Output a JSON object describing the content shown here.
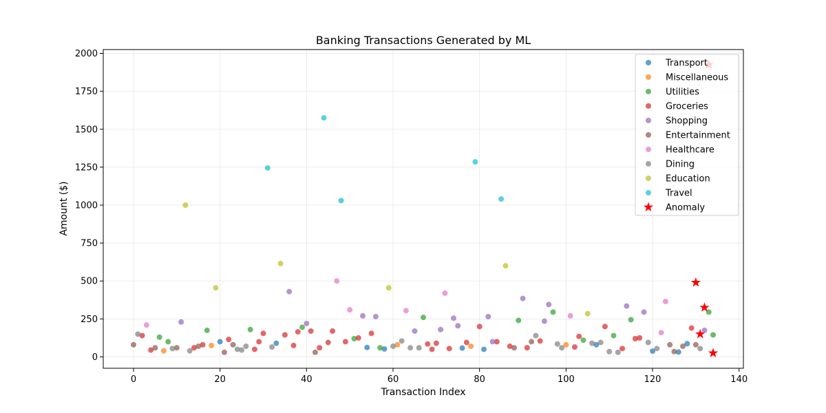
{
  "chart_data": {
    "type": "scatter",
    "title": "Banking Transactions Generated by ML",
    "xlabel": "Transaction Index",
    "ylabel": "Amount ($)",
    "xlim": [
      -7,
      141
    ],
    "ylim": [
      -75,
      2025
    ],
    "x_ticks": [
      0,
      20,
      40,
      60,
      80,
      100,
      120,
      140
    ],
    "y_ticks": [
      0,
      250,
      500,
      750,
      1000,
      1250,
      1500,
      1750,
      2000
    ],
    "grid": true,
    "legend_position": "top-right",
    "series": [
      {
        "name": "Transport",
        "color": "#1f77b4",
        "marker": "circle",
        "points": [
          [
            20,
            100
          ],
          [
            33,
            90
          ],
          [
            54,
            62
          ],
          [
            58,
            52
          ],
          [
            76,
            58
          ],
          [
            81,
            50
          ],
          [
            107,
            80
          ],
          [
            120,
            38
          ],
          [
            126,
            32
          ],
          [
            128,
            87
          ]
        ]
      },
      {
        "name": "Miscellaneous",
        "color": "#ff7f0e",
        "marker": "circle",
        "points": [
          [
            7,
            40
          ],
          [
            18,
            75
          ],
          [
            61,
            80
          ],
          [
            78,
            70
          ],
          [
            100,
            80
          ]
        ]
      },
      {
        "name": "Utilities",
        "color": "#2ca02c",
        "marker": "circle",
        "points": [
          [
            6,
            130
          ],
          [
            8,
            100
          ],
          [
            17,
            175
          ],
          [
            27,
            180
          ],
          [
            39,
            195
          ],
          [
            51,
            120
          ],
          [
            57,
            60
          ],
          [
            67,
            260
          ],
          [
            89,
            240
          ],
          [
            97,
            295
          ],
          [
            104,
            110
          ],
          [
            111,
            140
          ],
          [
            115,
            245
          ],
          [
            133,
            295
          ],
          [
            134,
            145
          ]
        ]
      },
      {
        "name": "Groceries",
        "color": "#d62728",
        "marker": "circle",
        "points": [
          [
            2,
            140
          ],
          [
            4,
            45
          ],
          [
            14,
            60
          ],
          [
            16,
            80
          ],
          [
            22,
            115
          ],
          [
            28,
            50
          ],
          [
            29,
            100
          ],
          [
            30,
            155
          ],
          [
            35,
            145
          ],
          [
            37,
            75
          ],
          [
            38,
            165
          ],
          [
            41,
            170
          ],
          [
            43,
            60
          ],
          [
            45,
            95
          ],
          [
            46,
            170
          ],
          [
            49,
            100
          ],
          [
            52,
            125
          ],
          [
            55,
            155
          ],
          [
            68,
            85
          ],
          [
            69,
            50
          ],
          [
            70,
            90
          ],
          [
            73,
            55
          ],
          [
            77,
            95
          ],
          [
            80,
            200
          ],
          [
            84,
            100
          ],
          [
            87,
            70
          ],
          [
            91,
            60
          ],
          [
            94,
            105
          ],
          [
            102,
            65
          ],
          [
            103,
            135
          ],
          [
            109,
            200
          ],
          [
            113,
            55
          ],
          [
            116,
            120
          ],
          [
            117,
            125
          ],
          [
            129,
            190
          ]
        ]
      },
      {
        "name": "Shopping",
        "color": "#9467bd",
        "marker": "circle",
        "points": [
          [
            11,
            230
          ],
          [
            36,
            430
          ],
          [
            40,
            220
          ],
          [
            53,
            270
          ],
          [
            56,
            265
          ],
          [
            65,
            170
          ],
          [
            71,
            180
          ],
          [
            74,
            255
          ],
          [
            75,
            205
          ],
          [
            82,
            265
          ],
          [
            83,
            100
          ],
          [
            90,
            385
          ],
          [
            95,
            235
          ],
          [
            96,
            345
          ],
          [
            114,
            335
          ],
          [
            118,
            295
          ],
          [
            132,
            175
          ]
        ]
      },
      {
        "name": "Entertainment",
        "color": "#8c564b",
        "marker": "circle",
        "points": [
          [
            0,
            80
          ],
          [
            5,
            60
          ],
          [
            10,
            60
          ],
          [
            15,
            70
          ],
          [
            21,
            30
          ],
          [
            23,
            80
          ],
          [
            42,
            30
          ],
          [
            88,
            60
          ],
          [
            92,
            100
          ],
          [
            124,
            80
          ],
          [
            125,
            35
          ],
          [
            127,
            70
          ],
          [
            130,
            80
          ]
        ]
      },
      {
        "name": "Healthcare",
        "color": "#e377c2",
        "marker": "circle",
        "points": [
          [
            3,
            210
          ],
          [
            47,
            500
          ],
          [
            50,
            310
          ],
          [
            63,
            305
          ],
          [
            72,
            420
          ],
          [
            101,
            270
          ],
          [
            122,
            160
          ],
          [
            123,
            365
          ]
        ]
      },
      {
        "name": "Dining",
        "color": "#7f7f7f",
        "marker": "circle",
        "points": [
          [
            1,
            150
          ],
          [
            9,
            55
          ],
          [
            13,
            40
          ],
          [
            24,
            50
          ],
          [
            25,
            45
          ],
          [
            26,
            70
          ],
          [
            32,
            65
          ],
          [
            60,
            70
          ],
          [
            62,
            105
          ],
          [
            64,
            60
          ],
          [
            66,
            60
          ],
          [
            93,
            140
          ],
          [
            98,
            85
          ],
          [
            99,
            60
          ],
          [
            106,
            90
          ],
          [
            108,
            95
          ],
          [
            110,
            35
          ],
          [
            112,
            30
          ],
          [
            119,
            95
          ],
          [
            121,
            55
          ],
          [
            131,
            55
          ]
        ]
      },
      {
        "name": "Education",
        "color": "#bcbd22",
        "marker": "circle",
        "points": [
          [
            12,
            1000
          ],
          [
            19,
            455
          ],
          [
            34,
            615
          ],
          [
            59,
            455
          ],
          [
            86,
            600
          ],
          [
            105,
            285
          ]
        ]
      },
      {
        "name": "Travel",
        "color": "#17becf",
        "marker": "circle",
        "points": [
          [
            31,
            1245
          ],
          [
            44,
            1575
          ],
          [
            48,
            1030
          ],
          [
            79,
            1285
          ],
          [
            85,
            1040
          ]
        ]
      },
      {
        "name": "Anomaly",
        "color": "#ff0000",
        "marker": "star",
        "points": [
          [
            130,
            490
          ],
          [
            131,
            150
          ],
          [
            132,
            325
          ],
          [
            133,
            1925
          ],
          [
            134,
            25
          ]
        ]
      }
    ]
  }
}
